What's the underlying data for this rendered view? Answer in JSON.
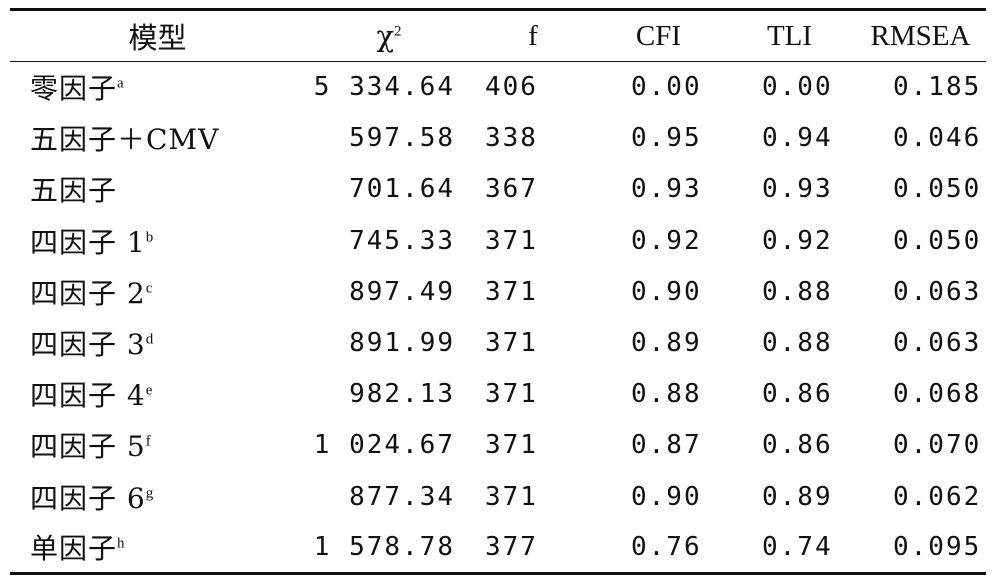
{
  "table": {
    "headers": {
      "model": "模型",
      "chi_symbol": "χ",
      "chi_sup": "2",
      "df": "f",
      "cfi": "CFI",
      "tli": "TLI",
      "rmsea": "RMSEA"
    },
    "rows": [
      {
        "model": "零因子",
        "sup": "a",
        "chi2": "5 334.64",
        "df": "406",
        "cfi": "0.00",
        "tli": "0.00",
        "rmsea": "0.185"
      },
      {
        "model": "五因子＋CMV",
        "sup": "",
        "chi2": "597.58",
        "df": "338",
        "cfi": "0.95",
        "tli": "0.94",
        "rmsea": "0.046"
      },
      {
        "model": "五因子",
        "sup": "",
        "chi2": "701.64",
        "df": "367",
        "cfi": "0.93",
        "tli": "0.93",
        "rmsea": "0.050"
      },
      {
        "model": "四因子 1",
        "sup": "b",
        "chi2": "745.33",
        "df": "371",
        "cfi": "0.92",
        "tli": "0.92",
        "rmsea": "0.050"
      },
      {
        "model": "四因子 2",
        "sup": "c",
        "chi2": "897.49",
        "df": "371",
        "cfi": "0.90",
        "tli": "0.88",
        "rmsea": "0.063"
      },
      {
        "model": "四因子 3",
        "sup": "d",
        "chi2": "891.99",
        "df": "371",
        "cfi": "0.89",
        "tli": "0.88",
        "rmsea": "0.063"
      },
      {
        "model": "四因子 4",
        "sup": "e",
        "chi2": "982.13",
        "df": "371",
        "cfi": "0.88",
        "tli": "0.86",
        "rmsea": "0.068"
      },
      {
        "model": "四因子 5",
        "sup": "f",
        "chi2": "1 024.67",
        "df": "371",
        "cfi": "0.87",
        "tli": "0.86",
        "rmsea": "0.070"
      },
      {
        "model": "四因子 6",
        "sup": "g",
        "chi2": "877.34",
        "df": "371",
        "cfi": "0.90",
        "tli": "0.89",
        "rmsea": "0.062"
      },
      {
        "model": "单因子",
        "sup": "h",
        "chi2": "1 578.78",
        "df": "377",
        "cfi": "0.76",
        "tli": "0.74",
        "rmsea": "0.095"
      }
    ]
  }
}
